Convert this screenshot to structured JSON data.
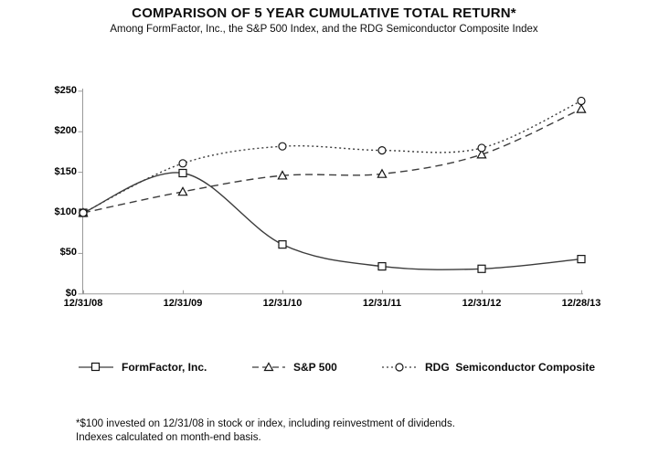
{
  "title": "COMPARISON OF 5 YEAR CUMULATIVE TOTAL RETURN*",
  "subtitle": "Among FormFactor, Inc., the S&P 500 Index, and the RDG Semiconductor Composite Index",
  "footnote": {
    "line1": "*$100 invested on 12/31/08 in stock or index, including reinvestment of dividends.",
    "line2": "Indexes calculated on month-end basis."
  },
  "colors": {
    "background": "#ffffff",
    "text": "#000000",
    "axis": "#9a9a9a",
    "series_line": "#3c3c3c",
    "marker_stroke": "#151515",
    "marker_fill": "#ffffff"
  },
  "chart_data": {
    "type": "line",
    "title": "COMPARISON OF 5 YEAR CUMULATIVE TOTAL RETURN*",
    "subtitle": "Among FormFactor, Inc., the S&P 500 Index, and the RDG Semiconductor Composite Index",
    "categories": [
      "12/31/08",
      "12/31/09",
      "12/31/10",
      "12/31/11",
      "12/31/12",
      "12/28/13"
    ],
    "series": [
      {
        "name": "FormFactor, Inc.",
        "marker": "square",
        "line_style": "solid",
        "values": [
          100,
          149,
          61,
          34,
          31,
          43
        ]
      },
      {
        "name": "S&P 500",
        "marker": "triangle",
        "line_style": "dashed",
        "values": [
          100,
          126,
          146,
          148,
          172,
          228
        ]
      },
      {
        "name": "RDG  Semiconductor Composite",
        "marker": "circle",
        "line_style": "dotted",
        "values": [
          100,
          161,
          182,
          177,
          180,
          238
        ]
      }
    ],
    "xlabel": "",
    "ylabel": "",
    "ylim": [
      0,
      250
    ],
    "y_tick_step": 50,
    "y_tick_prefix": "$",
    "y_tick_labels": [
      "$0",
      "$50",
      "$100",
      "$150",
      "$200",
      "$250"
    ],
    "grid": false,
    "legend_position": "bottom",
    "smoothed_lines": true
  }
}
